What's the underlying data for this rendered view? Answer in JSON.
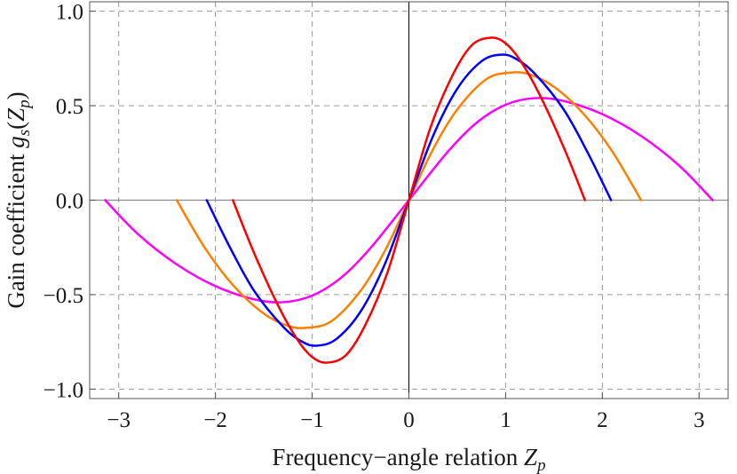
{
  "chart_data": {
    "type": "line",
    "title": "",
    "xlabel": {
      "text": "Frequency−angle relation ",
      "var": "Z",
      "sub": "p"
    },
    "ylabel": {
      "text": "Gain coefficient ",
      "var": "g",
      "sub": "s",
      "arg_open": "(",
      "arg_var": "Z",
      "arg_sub": "p",
      "arg_close": ")"
    },
    "xlim": [
      -3.3,
      3.3
    ],
    "ylim": [
      -1.05,
      1.05
    ],
    "grid": true,
    "x_ticks": [
      -3,
      -2,
      -1,
      0,
      1,
      2,
      3
    ],
    "x_tick_labels": [
      "−3",
      "−2",
      "−1",
      "0",
      "1",
      "2",
      "3"
    ],
    "y_ticks": [
      -1.0,
      -0.5,
      0.0,
      0.5,
      1.0
    ],
    "y_tick_labels": [
      "−1.0",
      "−0.5",
      "0.0",
      "0.5",
      "1.0"
    ],
    "series": [
      {
        "color": "#ff00ff",
        "points": [
          [
            -3.14,
            0.0
          ],
          [
            -2.8,
            -0.18
          ],
          [
            -2.4,
            -0.34
          ],
          [
            -2.0,
            -0.455
          ],
          [
            -1.6,
            -0.525
          ],
          [
            -1.3,
            -0.54
          ],
          [
            -1.0,
            -0.505
          ],
          [
            -0.7,
            -0.41
          ],
          [
            -0.4,
            -0.255
          ],
          [
            0.0,
            0.0
          ],
          [
            0.4,
            0.255
          ],
          [
            0.7,
            0.41
          ],
          [
            1.0,
            0.505
          ],
          [
            1.3,
            0.54
          ],
          [
            1.6,
            0.525
          ],
          [
            2.0,
            0.455
          ],
          [
            2.4,
            0.34
          ],
          [
            2.8,
            0.18
          ],
          [
            3.14,
            0.0
          ]
        ]
      },
      {
        "color": "#ff8000",
        "points": [
          [
            -2.4,
            0.0
          ],
          [
            -2.1,
            -0.26
          ],
          [
            -1.8,
            -0.46
          ],
          [
            -1.5,
            -0.6
          ],
          [
            -1.25,
            -0.665
          ],
          [
            -1.05,
            -0.675
          ],
          [
            -0.8,
            -0.64
          ],
          [
            -0.5,
            -0.48
          ],
          [
            -0.25,
            -0.27
          ],
          [
            0.0,
            0.0
          ],
          [
            0.25,
            0.27
          ],
          [
            0.5,
            0.48
          ],
          [
            0.8,
            0.64
          ],
          [
            1.05,
            0.675
          ],
          [
            1.25,
            0.665
          ],
          [
            1.5,
            0.6
          ],
          [
            1.8,
            0.46
          ],
          [
            2.1,
            0.26
          ],
          [
            2.4,
            0.0
          ]
        ]
      },
      {
        "color": "#0000ff",
        "points": [
          [
            -2.09,
            0.0
          ],
          [
            -1.85,
            -0.25
          ],
          [
            -1.6,
            -0.48
          ],
          [
            -1.3,
            -0.67
          ],
          [
            -1.1,
            -0.75
          ],
          [
            -0.95,
            -0.77
          ],
          [
            -0.75,
            -0.735
          ],
          [
            -0.5,
            -0.59
          ],
          [
            -0.25,
            -0.34
          ],
          [
            0.0,
            0.0
          ],
          [
            0.25,
            0.34
          ],
          [
            0.5,
            0.59
          ],
          [
            0.75,
            0.735
          ],
          [
            0.95,
            0.77
          ],
          [
            1.1,
            0.75
          ],
          [
            1.3,
            0.67
          ],
          [
            1.6,
            0.48
          ],
          [
            1.85,
            0.25
          ],
          [
            2.09,
            0.0
          ]
        ]
      },
      {
        "color": "#ff0000",
        "points": [
          [
            -1.82,
            0.0
          ],
          [
            -1.6,
            -0.28
          ],
          [
            -1.35,
            -0.56
          ],
          [
            -1.15,
            -0.74
          ],
          [
            -1.0,
            -0.83
          ],
          [
            -0.85,
            -0.86
          ],
          [
            -0.65,
            -0.82
          ],
          [
            -0.45,
            -0.66
          ],
          [
            -0.22,
            -0.38
          ],
          [
            0.0,
            0.0
          ],
          [
            0.22,
            0.38
          ],
          [
            0.45,
            0.66
          ],
          [
            0.65,
            0.82
          ],
          [
            0.85,
            0.86
          ],
          [
            1.0,
            0.83
          ],
          [
            1.15,
            0.74
          ],
          [
            1.35,
            0.56
          ],
          [
            1.6,
            0.28
          ],
          [
            1.82,
            0.0
          ]
        ]
      }
    ]
  }
}
